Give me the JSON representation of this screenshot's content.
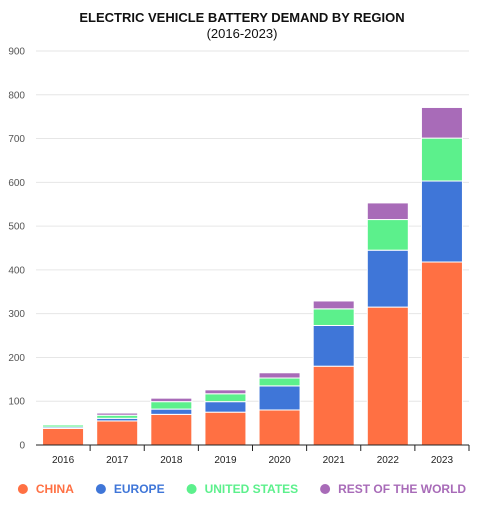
{
  "chart_data": {
    "type": "bar",
    "stacked": true,
    "title": "ELECTRIC VEHICLE BATTERY DEMAND BY REGION",
    "subtitle": "(2016-2023)",
    "xlabel": "",
    "ylabel": "",
    "ylim": [
      0,
      900
    ],
    "yticks": [
      0,
      100,
      200,
      300,
      400,
      500,
      600,
      700,
      800,
      900
    ],
    "grid": true,
    "legend_position": "bottom",
    "categories": [
      "2016",
      "2017",
      "2018",
      "2019",
      "2020",
      "2021",
      "2022",
      "2023"
    ],
    "series": [
      {
        "name": "CHINA",
        "color": "#ff7043",
        "values": [
          38,
          55,
          70,
          75,
          80,
          180,
          315,
          418
        ]
      },
      {
        "name": "EUROPE",
        "color": "#3f76d8",
        "values": [
          3,
          6,
          12,
          24,
          55,
          93,
          130,
          185
        ]
      },
      {
        "name": "UNITED STATES",
        "color": "#5cf08c",
        "values": [
          5,
          7,
          17,
          18,
          18,
          38,
          70,
          98
        ]
      },
      {
        "name": "REST OF THE WORLD",
        "color": "#a86bb8",
        "values": [
          2,
          5,
          8,
          9,
          12,
          18,
          38,
          70
        ]
      }
    ]
  }
}
